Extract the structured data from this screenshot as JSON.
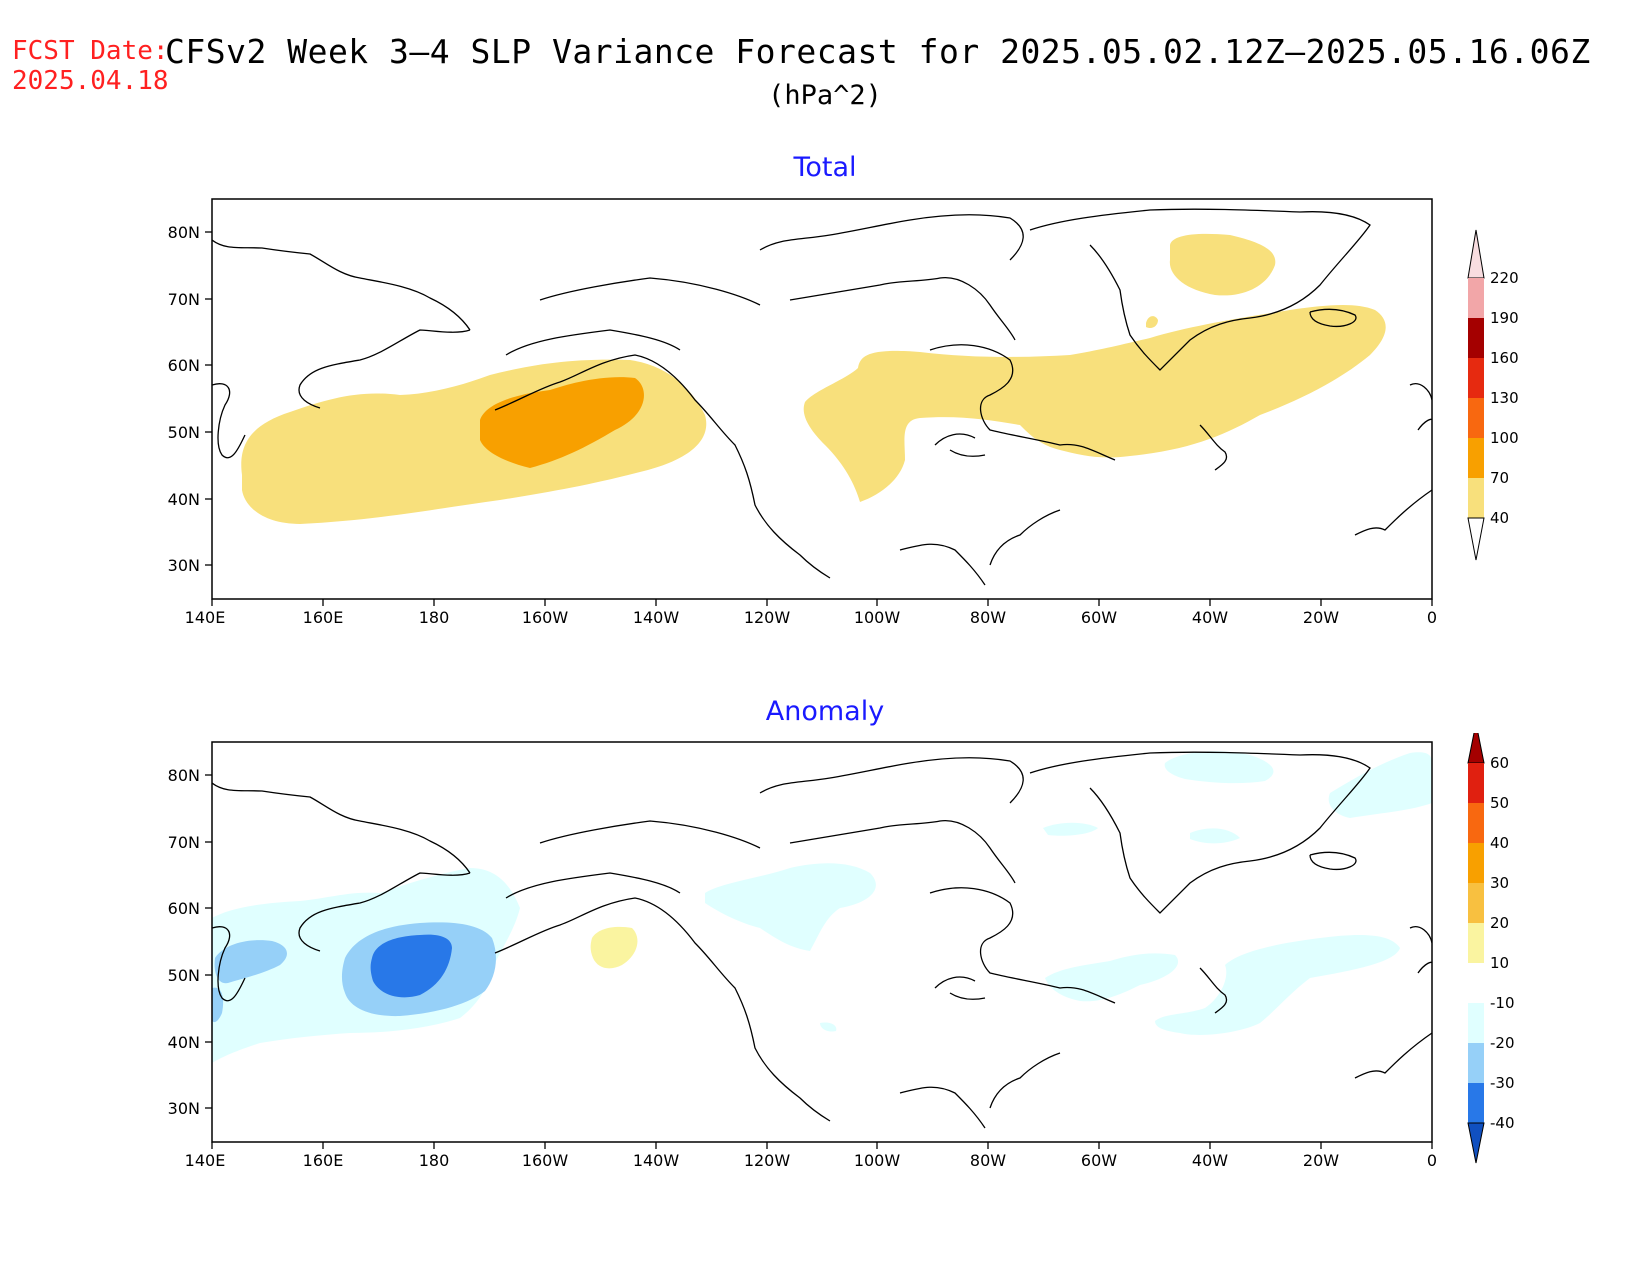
{
  "header": {
    "fcst_label": "FCST Date:",
    "fcst_date": "2025.04.18",
    "title": "CFSv2 Week 3–4 SLP Variance Forecast for 2025.05.02.12Z–2025.05.16.06Z",
    "units": "(hPa^2)"
  },
  "axes": {
    "lon_labels": [
      "140E",
      "160E",
      "180",
      "160W",
      "140W",
      "120W",
      "100W",
      "80W",
      "60W",
      "40W",
      "20W",
      "0"
    ],
    "lat_labels": [
      "80N",
      "70N",
      "60N",
      "50N",
      "40N",
      "30N"
    ],
    "lon_range": [
      140,
      360
    ],
    "lat_range": [
      25,
      85
    ]
  },
  "panels": [
    {
      "title": "Total",
      "colorbar": {
        "labels": [
          "220",
          "190",
          "160",
          "130",
          "100",
          "70",
          "40"
        ],
        "colors": [
          "#f8dde0",
          "#f2a6a8",
          "#a40000",
          "#e62a10",
          "#f86810",
          "#f8a000",
          "#f8e07c",
          "#ffffff"
        ]
      },
      "shading": [
        {
          "level": "40-70",
          "color": "#f8e07c"
        },
        {
          "level": "70-100",
          "color": "#f8a000"
        }
      ]
    },
    {
      "title": "Anomaly",
      "colorbar": {
        "labels": [
          "60",
          "50",
          "40",
          "30",
          "20",
          "10",
          "-10",
          "-20",
          "-30",
          "-40"
        ],
        "colors": [
          "#a40000",
          "#e02010",
          "#f86810",
          "#f8a000",
          "#f8c040",
          "#faf4a0",
          "#ffffff",
          "#e0ffff",
          "#96d0f8",
          "#2878e8",
          "#1050c0"
        ]
      },
      "shading": [
        {
          "level": "-20 to -10",
          "color": "#e0ffff"
        },
        {
          "level": "-30 to -20",
          "color": "#96d0f8"
        },
        {
          "level": "-40 to -30",
          "color": "#2878e8"
        },
        {
          "level": "10 to 20",
          "color": "#faf4a0"
        }
      ]
    }
  ]
}
